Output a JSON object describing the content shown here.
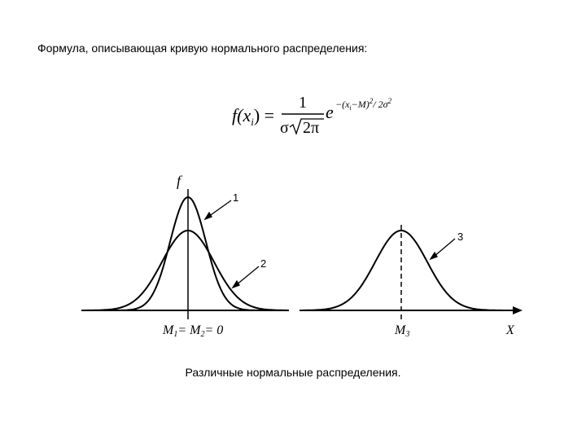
{
  "header": {
    "title": "Формула, описывающая кривую нормального распределения:"
  },
  "formula": {
    "lhs_f": "f",
    "lhs_arg": "(x",
    "lhs_sub": "i",
    "lhs_close": ") =",
    "numerator": "1",
    "denominator_sigma": "σ",
    "denominator_root": "2π",
    "exp_base": "e",
    "exp_a": "−(x",
    "exp_sub": "i",
    "exp_b": "−M)",
    "exp_sq": "2",
    "exp_c": "/ 2σ",
    "exp_sq2": "2"
  },
  "diagram": {
    "y_axis": "f",
    "x_axis": "X",
    "curve_1": "1",
    "curve_2": "2",
    "curve_3": "3",
    "origin": {
      "m": "M",
      "s1": "1",
      "eq": "= M",
      "s2": "2",
      "zero": "= 0"
    },
    "m3": {
      "m": "M",
      "s": "3"
    }
  },
  "caption": "Различные нормальные распределения."
}
